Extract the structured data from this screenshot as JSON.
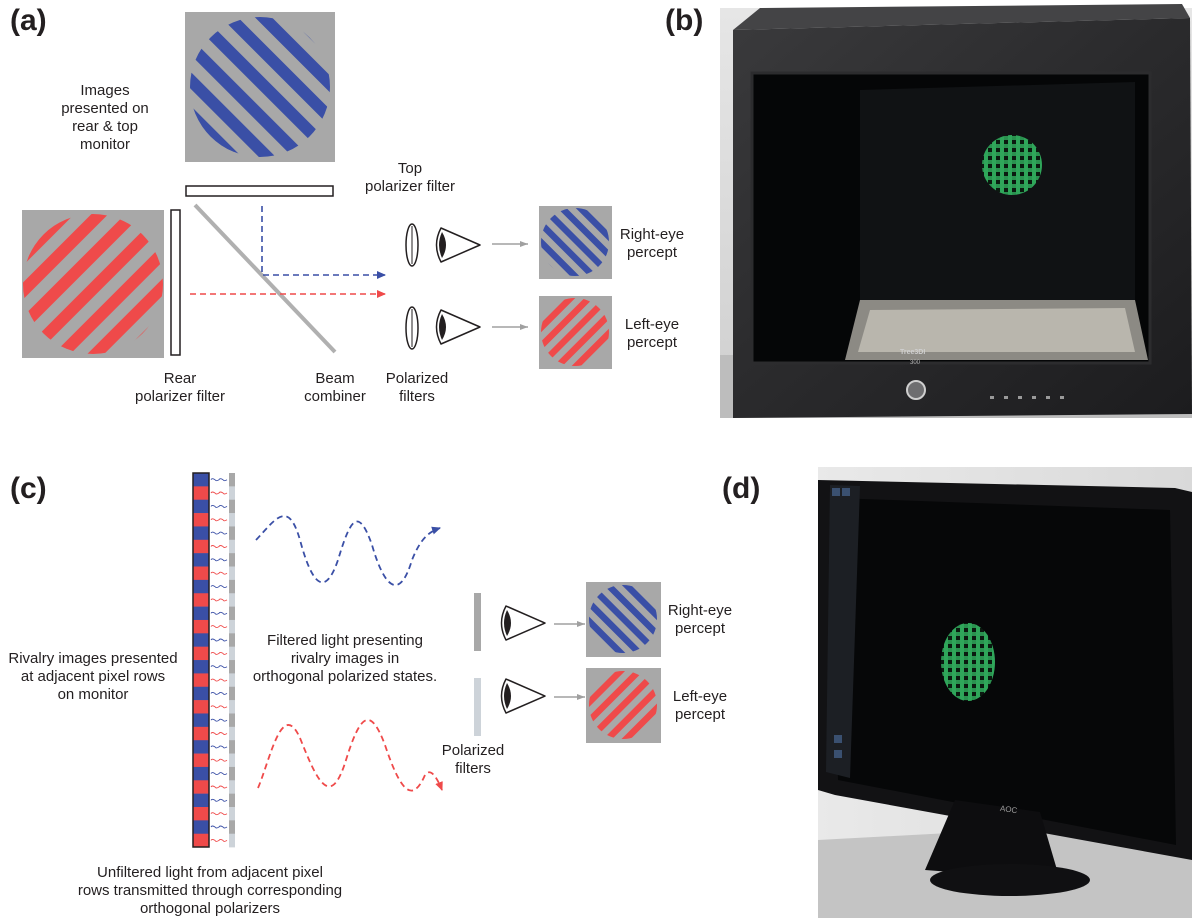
{
  "panels": {
    "a": "(a)",
    "b": "(b)",
    "c": "(c)",
    "d": "(d)"
  },
  "panel_a": {
    "images_label": "Images\npresented on\nrear & top\nmonitor",
    "top_filter_label": "Top\npolarizer filter",
    "rear_filter_label": "Rear\npolarizer filter",
    "beam_combiner_label": "Beam\ncombiner",
    "polarized_filters_label": "Polarized\nfilters",
    "right_percept_label": "Right-eye\npercept",
    "left_percept_label": "Left-eye\npercept"
  },
  "panel_b": {
    "monitor_brand": "Tree3DI",
    "monitor_model": "300"
  },
  "panel_c": {
    "rivalry_label": "Rivalry images presented\nat adjacent pixel rows\non monitor",
    "filtered_label": "Filtered light presenting\nrivalry images in\northogonal polarized states.",
    "polarized_filters_label": "Polarized\nfilters",
    "right_percept_label": "Right-eye\npercept",
    "left_percept_label": "Left-eye\npercept",
    "unfiltered_label": "Unfiltered light from adjacent pixel\nrows transmitted through corresponding\northogonal polarizers"
  },
  "panel_d": {
    "monitor_brand": "AOC"
  },
  "colors": {
    "blue": "#3a4fa6",
    "red": "#ef4a4a",
    "gray_bg": "#a8a8a8",
    "arrow_gray": "#a0a0a0",
    "dark_text": "#231f20",
    "green_pattern": "#2fa65a"
  }
}
